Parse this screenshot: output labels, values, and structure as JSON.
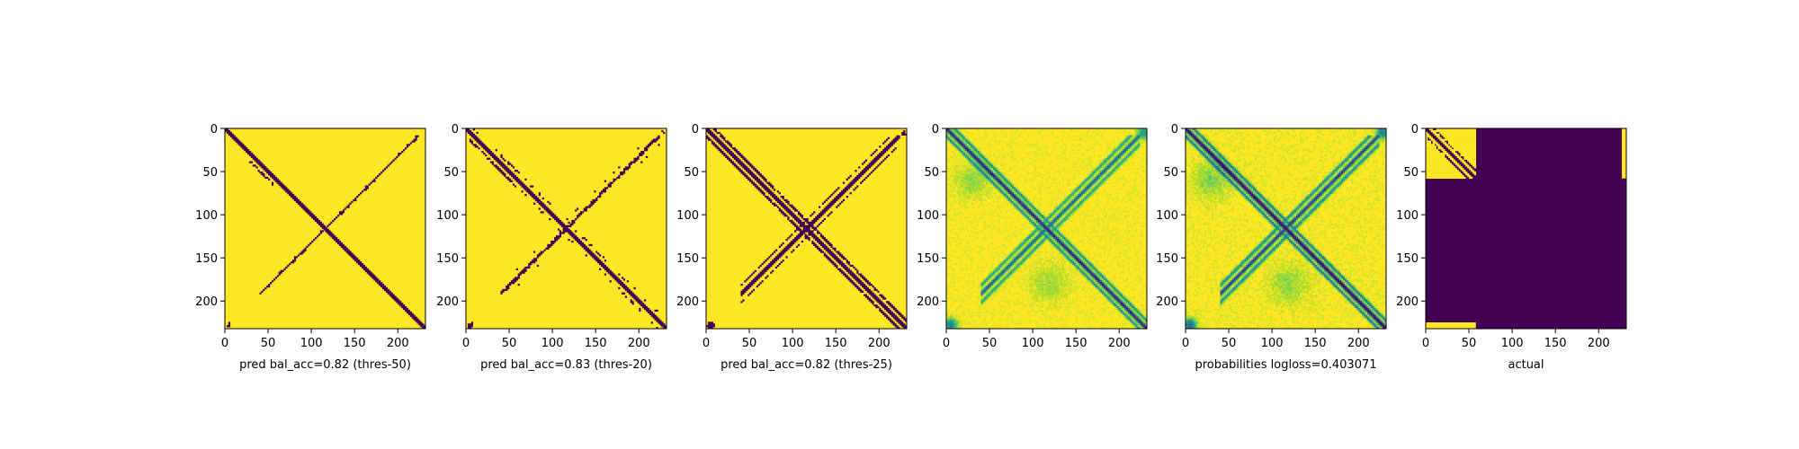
{
  "figure": {
    "colors": {
      "background": "#ffffff",
      "low": "#440154",
      "high": "#fde725"
    }
  },
  "chart_data": [
    {
      "type": "heatmap",
      "kind": "binary",
      "colormap": "viridis",
      "matrix_size": 232,
      "xticks": [
        0,
        50,
        100,
        150,
        200
      ],
      "yticks": [
        0,
        50,
        100,
        150,
        200
      ],
      "xlim": [
        0,
        232
      ],
      "ylim": [
        232,
        0
      ],
      "xlabel": "pred bal_acc=0.82 (thres-50)",
      "title": "",
      "bal_acc": 0.82,
      "threshold": 50
    },
    {
      "type": "heatmap",
      "kind": "binary",
      "colormap": "viridis",
      "matrix_size": 232,
      "xticks": [
        0,
        50,
        100,
        150,
        200
      ],
      "yticks": [
        0,
        50,
        100,
        150,
        200
      ],
      "xlim": [
        0,
        232
      ],
      "ylim": [
        232,
        0
      ],
      "xlabel": "pred bal_acc=0.83 (thres-20)",
      "title": "",
      "bal_acc": 0.83,
      "threshold": 20
    },
    {
      "type": "heatmap",
      "kind": "binary",
      "colormap": "viridis",
      "matrix_size": 232,
      "xticks": [
        0,
        50,
        100,
        150,
        200
      ],
      "yticks": [
        0,
        50,
        100,
        150,
        200
      ],
      "xlim": [
        0,
        232
      ],
      "ylim": [
        232,
        0
      ],
      "xlabel": "pred bal_acc=0.82 (thres-25)",
      "title": "",
      "bal_acc": 0.82,
      "threshold": 25
    },
    {
      "type": "heatmap",
      "kind": "continuous",
      "colormap": "viridis",
      "matrix_size": 232,
      "xticks": [
        0,
        50,
        100,
        150,
        200
      ],
      "yticks": [
        0,
        50,
        100,
        150,
        200
      ],
      "xlim": [
        0,
        232
      ],
      "ylim": [
        232,
        0
      ],
      "xlabel": "",
      "title": ""
    },
    {
      "type": "heatmap",
      "kind": "continuous",
      "colormap": "viridis",
      "matrix_size": 232,
      "xticks": [
        0,
        50,
        100,
        150,
        200
      ],
      "yticks": [
        0,
        50,
        100,
        150,
        200
      ],
      "xlim": [
        0,
        232
      ],
      "ylim": [
        232,
        0
      ],
      "xlabel": "probabilities logloss=0.403071",
      "title": "",
      "logloss": 0.403071
    },
    {
      "type": "heatmap",
      "kind": "block",
      "colormap": "viridis",
      "matrix_size": 232,
      "known_block_end": 58,
      "xticks": [
        0,
        50,
        100,
        150,
        200
      ],
      "yticks": [
        0,
        50,
        100,
        150,
        200
      ],
      "xlim": [
        0,
        232
      ],
      "ylim": [
        232,
        0
      ],
      "xlabel": "actual",
      "title": ""
    }
  ]
}
